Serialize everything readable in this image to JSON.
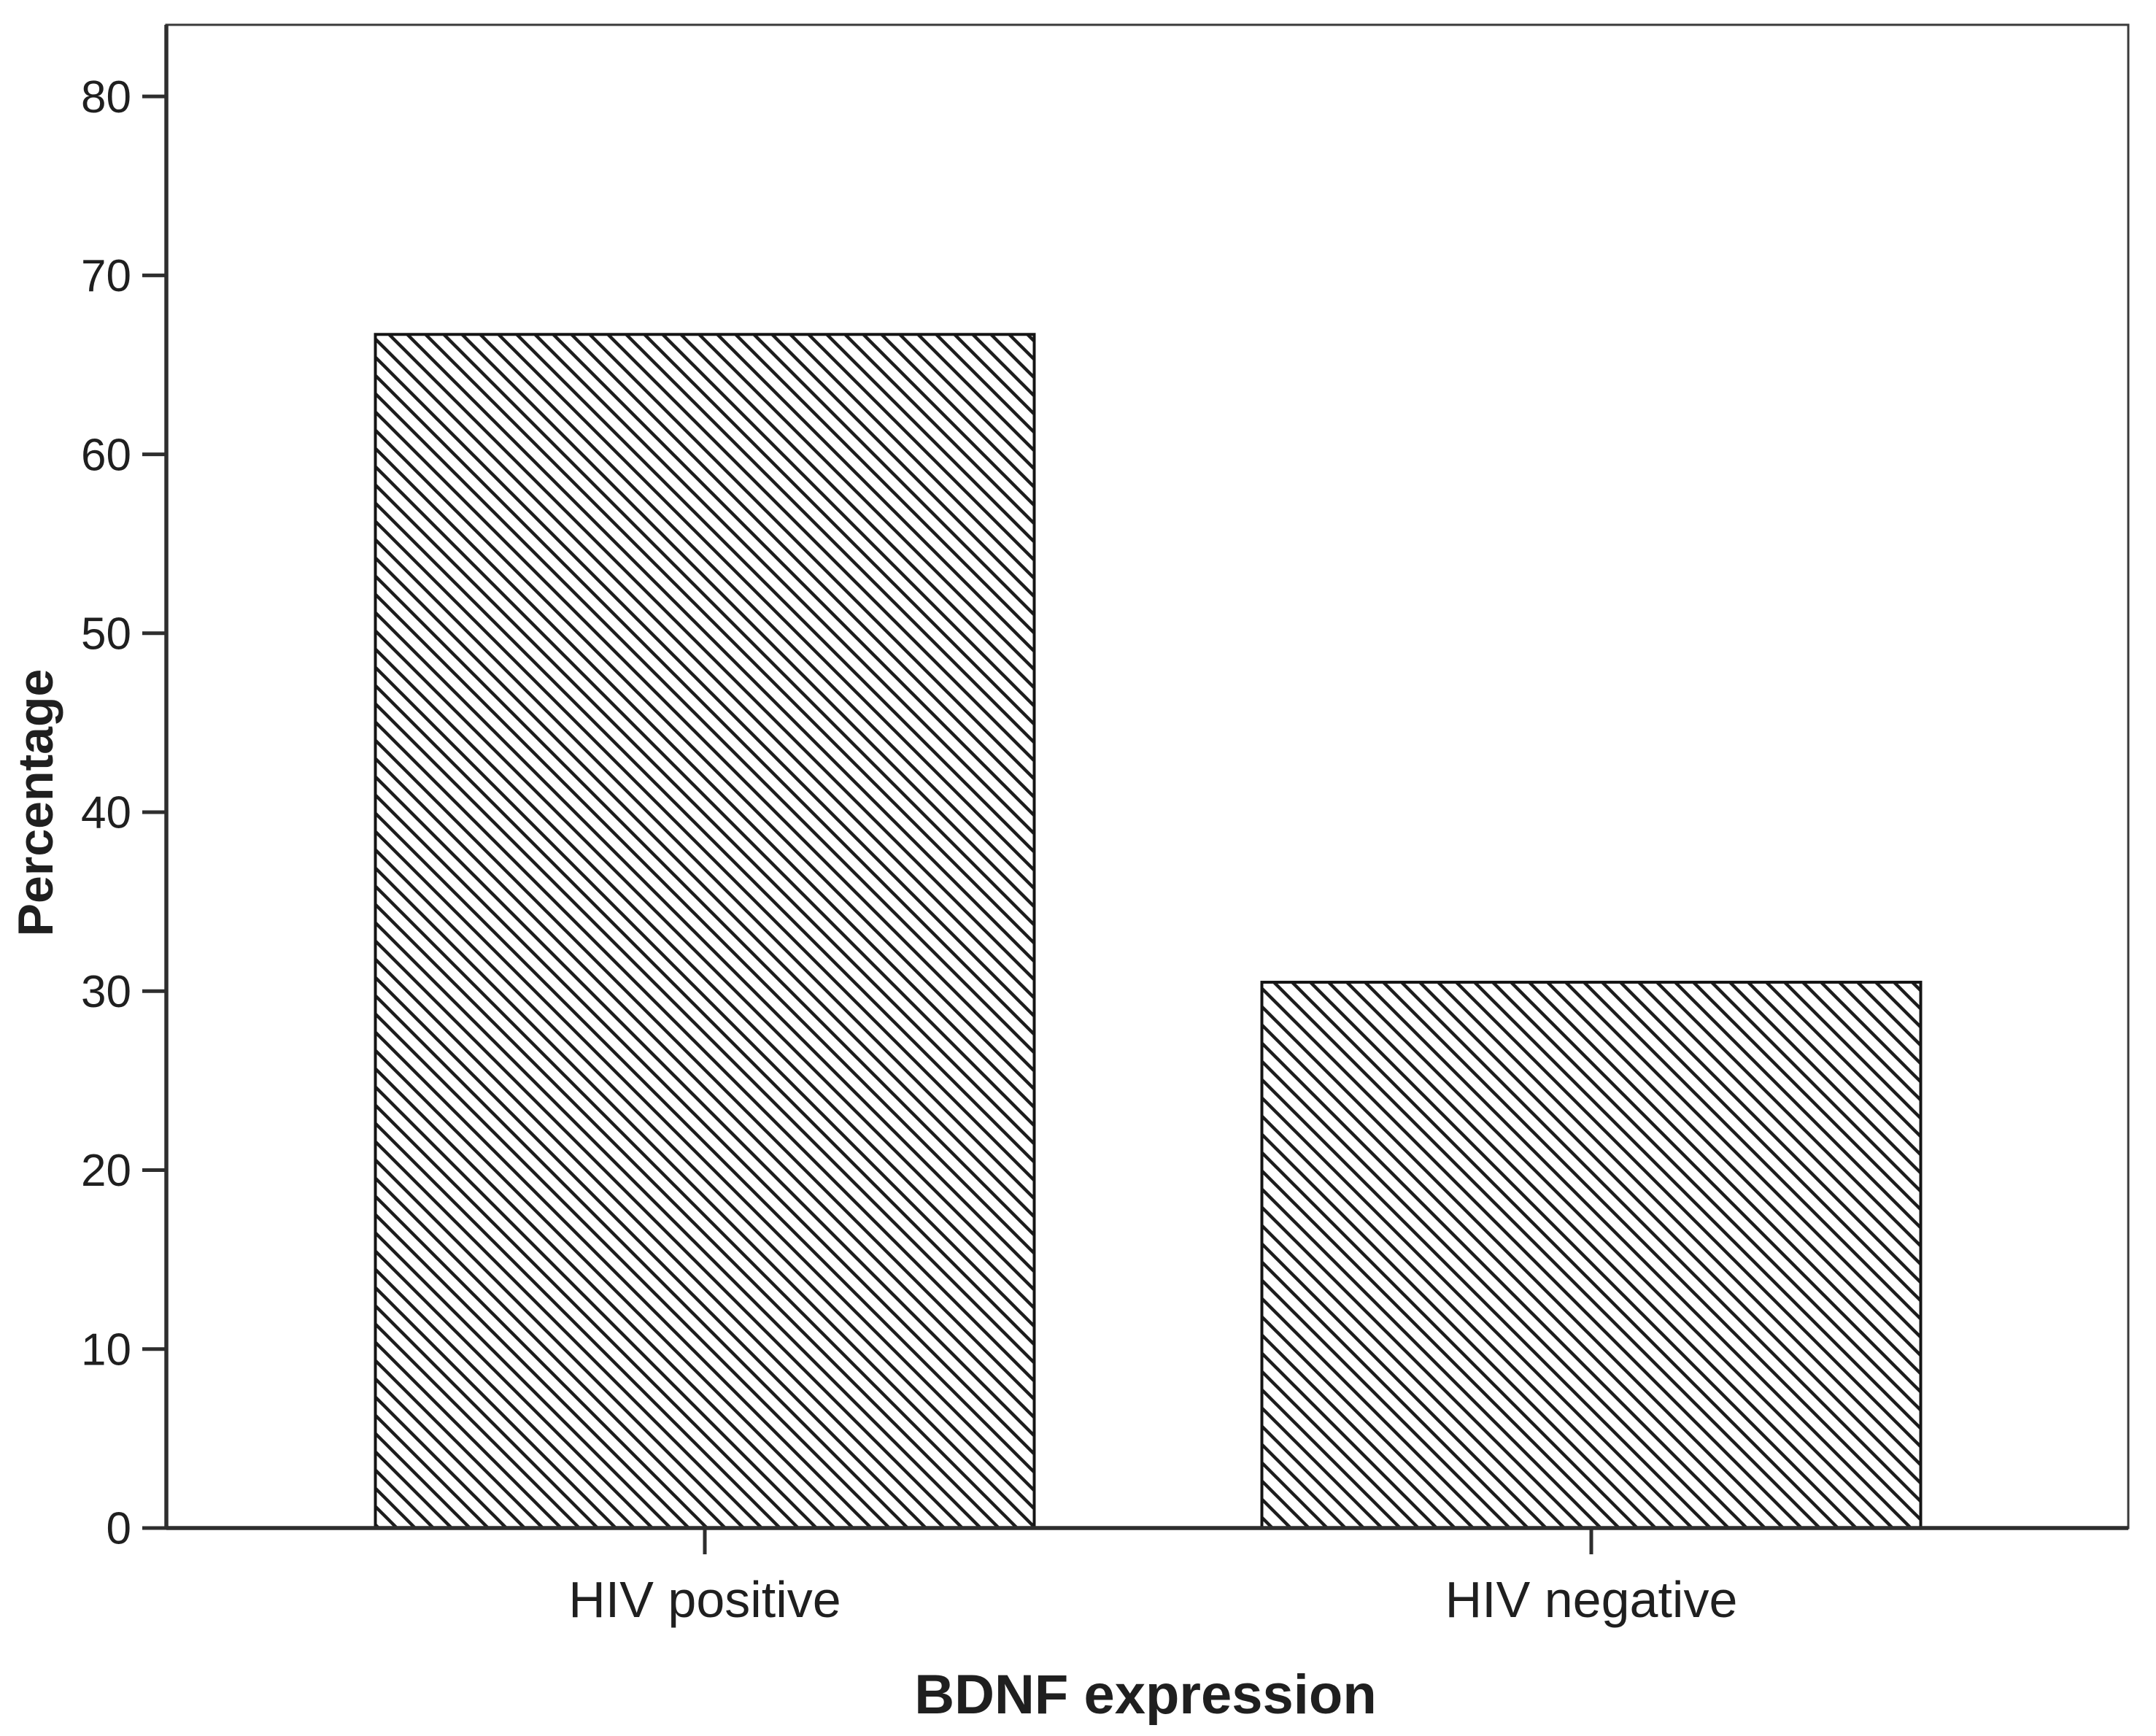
{
  "figure": {
    "background": "#ffffff",
    "style": "statistical-bar-chart"
  },
  "chart_data": {
    "type": "bar",
    "title": "",
    "xlabel": "BDNF expression",
    "ylabel": "Percentage",
    "categories": [
      "HIV positive",
      "HIV negative"
    ],
    "values": [
      66.7,
      30.5
    ],
    "yticks": [
      0,
      10,
      20,
      30,
      40,
      50,
      60,
      70,
      80
    ],
    "ylim": [
      0,
      84
    ],
    "grid": false,
    "legend": "none",
    "bar_fill": "#ffffff",
    "bar_hatch": "diagonal-backslash",
    "hatch_color": "#1c1c1c",
    "bar_border_color": "#141414",
    "axis_color": "#2e2e2e",
    "frame_color": "#3a3a3a",
    "text_color": "#1f1f1f"
  }
}
